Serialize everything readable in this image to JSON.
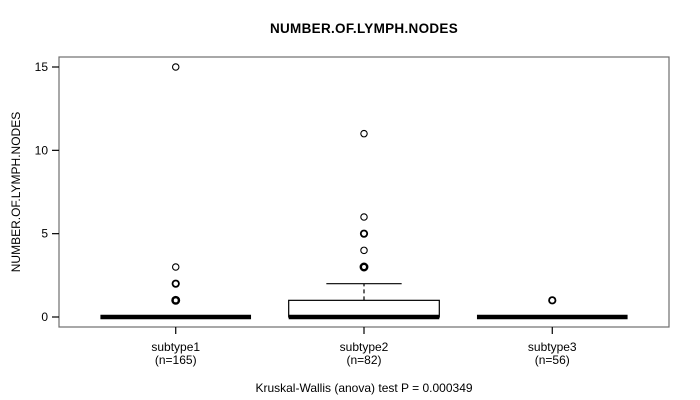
{
  "title": "NUMBER.OF.LYMPH.NODES",
  "caption": "Kruskal-Wallis (anova) test P = 0.000349",
  "chart_data": {
    "type": "boxplot",
    "title": "NUMBER.OF.LYMPH.NODES",
    "ylabel": "NUMBER.OF.LYMPH.NODES",
    "xlabel": "",
    "ylim": [
      -0.6,
      15.6
    ],
    "yticks": [
      0,
      5,
      10,
      15
    ],
    "grid": false,
    "footer": "Kruskal-Wallis (anova) test P = 0.000349",
    "groups": [
      {
        "label": "subtype1",
        "sublabel": "(n=165)",
        "n": 165,
        "median": 0,
        "q1": 0,
        "q3": 0,
        "whisker_low": 0,
        "whisker_high": 0,
        "outliers": [
          {
            "value": 1,
            "weight": 3
          },
          {
            "value": 2,
            "weight": 2
          },
          {
            "value": 3,
            "weight": 1
          },
          {
            "value": 15,
            "weight": 1
          }
        ]
      },
      {
        "label": "subtype2",
        "sublabel": "(n=82)",
        "n": 82,
        "median": 0,
        "q1": 0,
        "q3": 1,
        "whisker_low": 0,
        "whisker_high": 2,
        "outliers": [
          {
            "value": 3,
            "weight": 3
          },
          {
            "value": 4,
            "weight": 1
          },
          {
            "value": 5,
            "weight": 2
          },
          {
            "value": 6,
            "weight": 1
          },
          {
            "value": 11,
            "weight": 1
          }
        ]
      },
      {
        "label": "subtype3",
        "sublabel": "(n=56)",
        "n": 56,
        "median": 0,
        "q1": 0,
        "q3": 0,
        "whisker_low": 0,
        "whisker_high": 0,
        "outliers": [
          {
            "value": 1,
            "weight": 2
          }
        ]
      }
    ],
    "colors": {
      "line": "#000000",
      "box_fill": "#ffffff",
      "frame": "#6e6e6e",
      "background": "#ffffff"
    }
  }
}
